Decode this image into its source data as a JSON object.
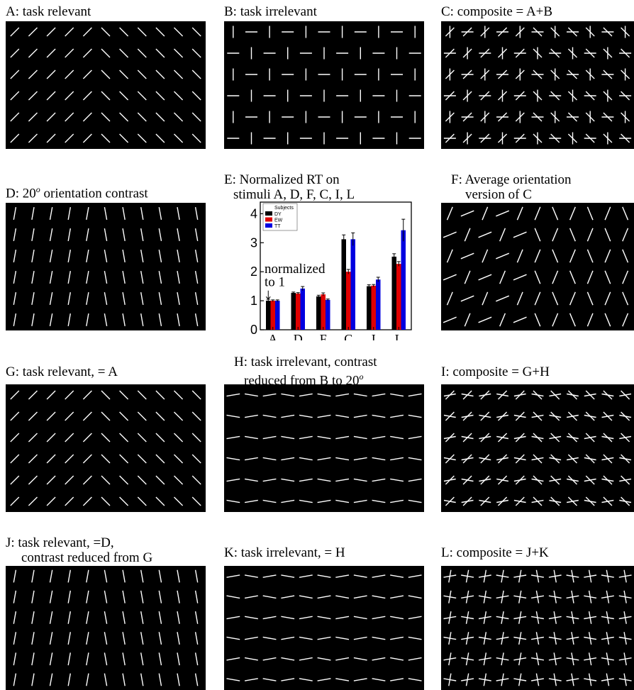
{
  "panels": {
    "A": {
      "title": "A: task relevant"
    },
    "B": {
      "title": "B: task irrelevant"
    },
    "C": {
      "title": "C: composite = A+B"
    },
    "D": {
      "title_pre": "D: 20",
      "title_sup": "o",
      "title_post": " orientation contrast"
    },
    "E": {
      "title1": "E: Normalized RT on",
      "title2": "stimuli A, D, F, C, I, L"
    },
    "F": {
      "title1": "F: Average orientation",
      "title2": "version of C"
    },
    "G": {
      "title": "G: task relevant, = A"
    },
    "H": {
      "title1": "H: task irrelevant, contrast",
      "title2_pre": "reduced from B to 20",
      "title2_sup": "o"
    },
    "I": {
      "title": "I: composite = G+H"
    },
    "J": {
      "title1": "J: task relevant, =D,",
      "title2": "contrast reduced from G"
    },
    "K": {
      "title": "K: task irrelevant, = H"
    },
    "L": {
      "title": "L: composite = J+K"
    }
  },
  "colors": {
    "background": "#000000",
    "stimulus_line": "#ffffff",
    "DY": "#000000",
    "EW": "#e00000",
    "TT": "#0000e0"
  },
  "chart_data": {
    "type": "bar",
    "categories": [
      "A",
      "D",
      "F",
      "C",
      "I",
      "L"
    ],
    "series": [
      {
        "name": "DY",
        "values": [
          1.0,
          1.27,
          1.15,
          3.12,
          1.5,
          2.52
        ],
        "errors": [
          0.05,
          0.03,
          0.04,
          0.15,
          0.05,
          0.1
        ]
      },
      {
        "name": "EW",
        "values": [
          1.0,
          1.25,
          1.22,
          2.0,
          1.52,
          2.27
        ],
        "errors": [
          0.03,
          0.03,
          0.05,
          0.08,
          0.04,
          0.08
        ]
      },
      {
        "name": "TT",
        "values": [
          1.0,
          1.42,
          1.03,
          3.12,
          1.73,
          3.43
        ],
        "errors": [
          0.03,
          0.07,
          0.03,
          0.22,
          0.08,
          0.38
        ]
      }
    ],
    "ylim": [
      0,
      4.4
    ],
    "yticks": [
      0,
      1,
      2,
      3,
      4
    ],
    "legend_title": "Subjects",
    "legend_position": "top-left",
    "annotation": {
      "line1": "normalized",
      "line2": "to 1"
    }
  }
}
